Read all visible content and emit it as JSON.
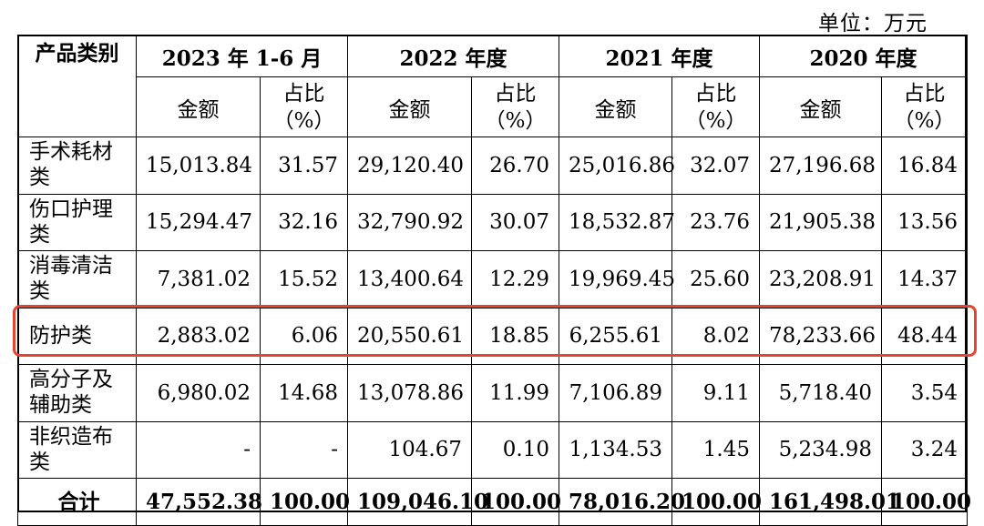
{
  "unit": "单位：万元",
  "header": {
    "category": "产品类别",
    "periods": [
      "2023 年 1-6 月",
      "2022 年度",
      "2021 年度",
      "2020 年度"
    ],
    "amount": "金额",
    "ratio_line1": "占比",
    "ratio_line2": "（%）"
  },
  "rows": [
    {
      "category": "手术耗材类",
      "values": [
        "15,013.84",
        "31.57",
        "29,120.40",
        "26.70",
        "25,016.86",
        "32.07",
        "27,196.68",
        "16.84"
      ]
    },
    {
      "category": "伤口护理类",
      "values": [
        "15,294.47",
        "32.16",
        "32,790.92",
        "30.07",
        "18,532.87",
        "23.76",
        "21,905.38",
        "13.56"
      ]
    },
    {
      "category": "消毒清洁类",
      "values": [
        "7,381.02",
        "15.52",
        "13,400.64",
        "12.29",
        "19,969.45",
        "25.60",
        "23,208.91",
        "14.37"
      ]
    },
    {
      "category": "防护类",
      "values": [
        "2,883.02",
        "6.06",
        "20,550.61",
        "18.85",
        "6,255.61",
        "8.02",
        "78,233.66",
        "48.44"
      ]
    },
    {
      "category": "高分子及辅助类",
      "values": [
        "6,980.02",
        "14.68",
        "13,078.86",
        "11.99",
        "7,106.89",
        "9.11",
        "5,718.40",
        "3.54"
      ]
    },
    {
      "category": "非织造布类",
      "values": [
        "-",
        "-",
        "104.67",
        "0.10",
        "1,134.53",
        "1.45",
        "5,234.98",
        "3.24"
      ]
    }
  ],
  "total": {
    "category": "合计",
    "values": [
      "47,552.38",
      "100.00",
      "109,046.10",
      "100.00",
      "78,016.20",
      "100.00",
      "161,498.01",
      "100.00"
    ]
  },
  "colors": {
    "highlight_border": "#e8432f"
  }
}
